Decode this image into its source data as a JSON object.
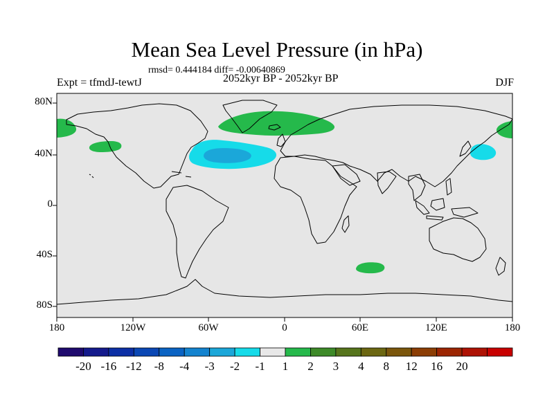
{
  "title": "Mean Sea Level Pressure (in hPa)",
  "stats": "rmsd= 0.444184 diff= -0.00640869",
  "subtitle": "2052kyr BP - 2052kyr BP",
  "experiment": "Expt = tfmdJ-tewtJ",
  "season": "DJF",
  "map": {
    "projection": "cylindrical-equidistant",
    "lon_range": [
      -180,
      180
    ],
    "lat_range": [
      -90,
      90
    ],
    "lat_ticks": [
      "80N",
      "40N",
      "0",
      "40S",
      "80S"
    ],
    "lon_ticks": [
      "180",
      "120W",
      "60W",
      "0",
      "60E",
      "120E",
      "180"
    ],
    "colors": {
      "background": "#e6e6e6",
      "coast": "#000000"
    }
  },
  "anomaly_regions": [
    {
      "name": "north-atlantic-low",
      "level": "-2",
      "color": "#16dbe9",
      "lon": -50,
      "lat": 38
    },
    {
      "name": "north-atlantic-low-core",
      "level": "-3",
      "color": "#1ba7d9",
      "lon": -43,
      "lat": 38
    },
    {
      "name": "nw-pacific-low",
      "level": "-2",
      "color": "#16dbe9",
      "lon": 150,
      "lat": 40
    },
    {
      "name": "greenland-sea-high",
      "level": "2",
      "color": "#25b94b",
      "lon": 0,
      "lat": 65
    },
    {
      "name": "ne-pacific-high",
      "level": "2",
      "color": "#25b94b",
      "lon": -140,
      "lat": 45
    },
    {
      "name": "bering-high",
      "level": "2",
      "color": "#25b94b",
      "lon": 175,
      "lat": 60
    },
    {
      "name": "southern-indian-high",
      "level": "2",
      "color": "#25b94b",
      "lon": 70,
      "lat": -50
    }
  ],
  "colorbar": {
    "colors": [
      "#1f0a6e",
      "#141a8c",
      "#0c2fa5",
      "#0a47b4",
      "#0a63c3",
      "#1383cf",
      "#1ba7d9",
      "#16dbe9",
      "#e8e8e8",
      "#25b94b",
      "#3d8a28",
      "#56751c",
      "#6c6712",
      "#7b560c",
      "#8c3e05",
      "#9c2502",
      "#ae1204",
      "#c80000"
    ],
    "labels": [
      "-20",
      "-16",
      "-12",
      "-8",
      "-4",
      "-3",
      "-2",
      "-1",
      "1",
      "2",
      "3",
      "4",
      "8",
      "12",
      "16",
      "20"
    ]
  }
}
